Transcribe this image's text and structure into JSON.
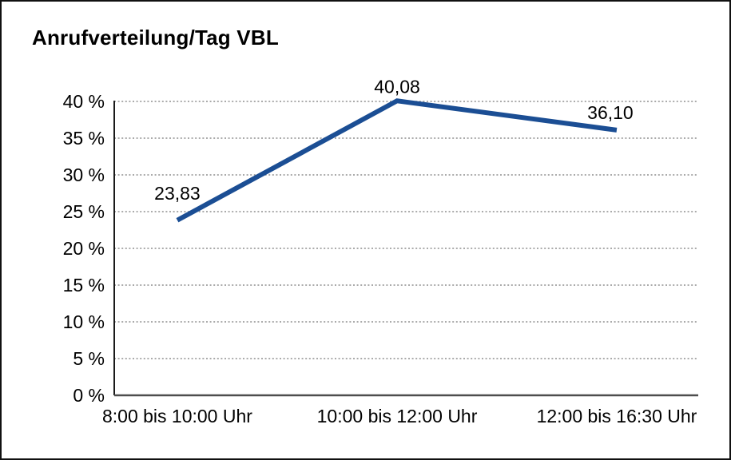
{
  "chart_data": {
    "type": "line",
    "title": "Anrufverteilung/Tag VBL",
    "categories": [
      "8:00 bis 10:00 Uhr",
      "10:00 bis 12:00 Uhr",
      "12:00 bis 16:30 Uhr"
    ],
    "values": [
      23.83,
      40.08,
      36.1
    ],
    "value_labels": [
      "23,83",
      "40,08",
      "36,10"
    ],
    "series_name": "Anrufverteilung",
    "xlabel": "",
    "ylabel": "",
    "ylim": [
      0,
      40
    ],
    "ytick_step": 5,
    "yticks": [
      {
        "value": 0,
        "label": "0 %"
      },
      {
        "value": 5,
        "label": "5 %"
      },
      {
        "value": 10,
        "label": "10 %"
      },
      {
        "value": 15,
        "label": "15 %"
      },
      {
        "value": 20,
        "label": "20 %"
      },
      {
        "value": 25,
        "label": "25 %"
      },
      {
        "value": 30,
        "label": "30 %"
      },
      {
        "value": 35,
        "label": "35 %"
      },
      {
        "value": 40,
        "label": "40 %"
      }
    ],
    "grid": "horizontal-dotted",
    "legend": "none",
    "colors": {
      "line": "#1b4e94",
      "gridline": "#8f8f8f",
      "axis": "#1a1a1a",
      "background": "#ffffff",
      "border": "#111111"
    }
  }
}
